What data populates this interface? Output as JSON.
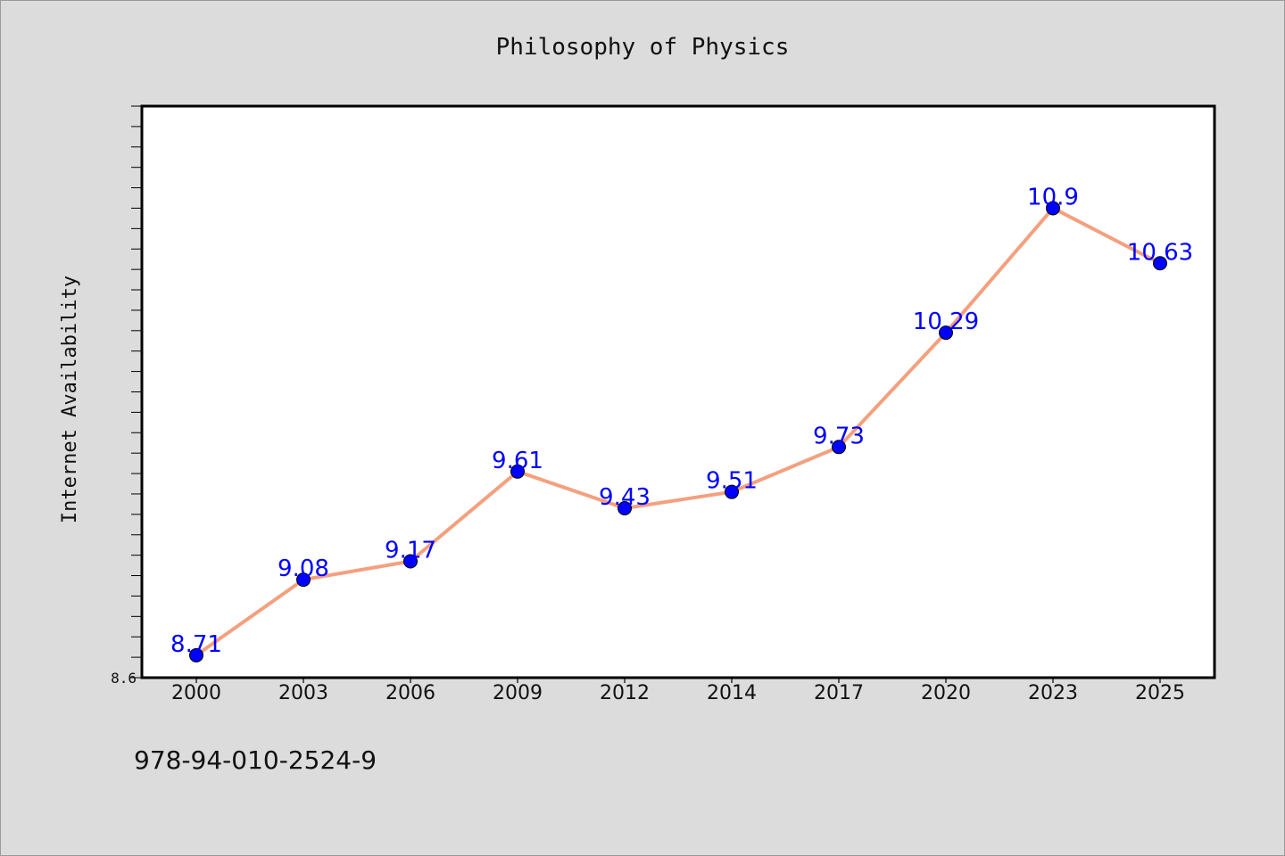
{
  "chart_data": {
    "type": "line",
    "title": "Philosophy of Physics",
    "xlabel": "",
    "ylabel": "Internet Availability",
    "categories": [
      "2000",
      "2003",
      "2006",
      "2009",
      "2012",
      "2014",
      "2017",
      "2020",
      "2023",
      "2025"
    ],
    "series": [
      {
        "values": [
          8.71,
          9.08,
          9.17,
          9.61,
          9.43,
          9.51,
          9.73,
          10.29,
          10.9,
          10.63
        ]
      }
    ],
    "data_labels": [
      "8.71",
      "9.08",
      "9.17",
      "9.61",
      "9.43",
      "9.51",
      "9.73",
      "10.29",
      "10.9",
      "10.63"
    ],
    "ylim": [
      8.6,
      11.4
    ],
    "yticks_labeled": [
      "8.6"
    ],
    "grid": false,
    "legend": "none",
    "colors": {
      "line": "#f4a07e",
      "marker": "#0000ff",
      "label": "#0000ff",
      "plot_bg": "#ffffff",
      "page_bg": "#dcdcdc"
    }
  },
  "footer": {
    "isbn": "978-94-010-2524-9"
  }
}
